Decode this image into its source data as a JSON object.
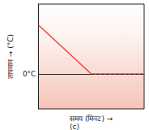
{
  "chart_data": {
    "type": "line",
    "title": "(c)",
    "x_label": "समय (मिनट) →",
    "y_label": "तापमान → (°C)",
    "x": [
      0,
      5,
      10
    ],
    "values": [
      7,
      0,
      0
    ],
    "color": "#e8473c",
    "xlim": [
      0,
      10
    ],
    "xticks": [],
    "ylim": [
      -5,
      10
    ],
    "yticks": [
      {
        "value": 0,
        "label": "0°C"
      }
    ],
    "grid": true,
    "tick_labels": "y"
  }
}
